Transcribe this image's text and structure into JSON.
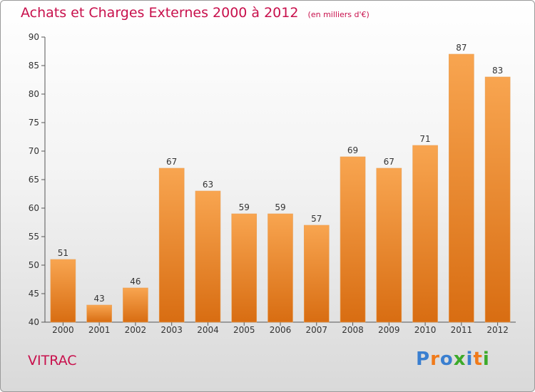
{
  "title": "Achats et Charges Externes 2000 à 2012",
  "subtitle": "(en milliers d'€)",
  "commune": "VITRAC",
  "logo": {
    "letters": [
      {
        "ch": "P",
        "color": "#3a7fd0"
      },
      {
        "ch": "r",
        "color": "#f07a1a"
      },
      {
        "ch": "o",
        "color": "#3a7fd0"
      },
      {
        "ch": "x",
        "color": "#3caa2a"
      },
      {
        "ch": "i",
        "color": "#3a7fd0"
      },
      {
        "ch": "t",
        "color": "#f07a1a"
      },
      {
        "ch": "i",
        "color": "#3caa2a"
      }
    ]
  },
  "colors": {
    "title": "#c8104c",
    "bar_top": "#f8a550",
    "bar_bottom": "#d86d12"
  },
  "chart_data": {
    "type": "bar",
    "categories": [
      "2000",
      "2001",
      "2002",
      "2003",
      "2004",
      "2005",
      "2006",
      "2007",
      "2008",
      "2009",
      "2010",
      "2011",
      "2012"
    ],
    "values": [
      51,
      43,
      46,
      67,
      63,
      59,
      59,
      57,
      69,
      67,
      71,
      87,
      83
    ],
    "ylim": [
      40,
      90
    ],
    "yticks": [
      40,
      45,
      50,
      55,
      60,
      65,
      70,
      75,
      80,
      85,
      90
    ],
    "grid": false,
    "data_labels": true,
    "title": "Achats et Charges Externes 2000 à 2012",
    "xlabel": "",
    "ylabel": ""
  }
}
